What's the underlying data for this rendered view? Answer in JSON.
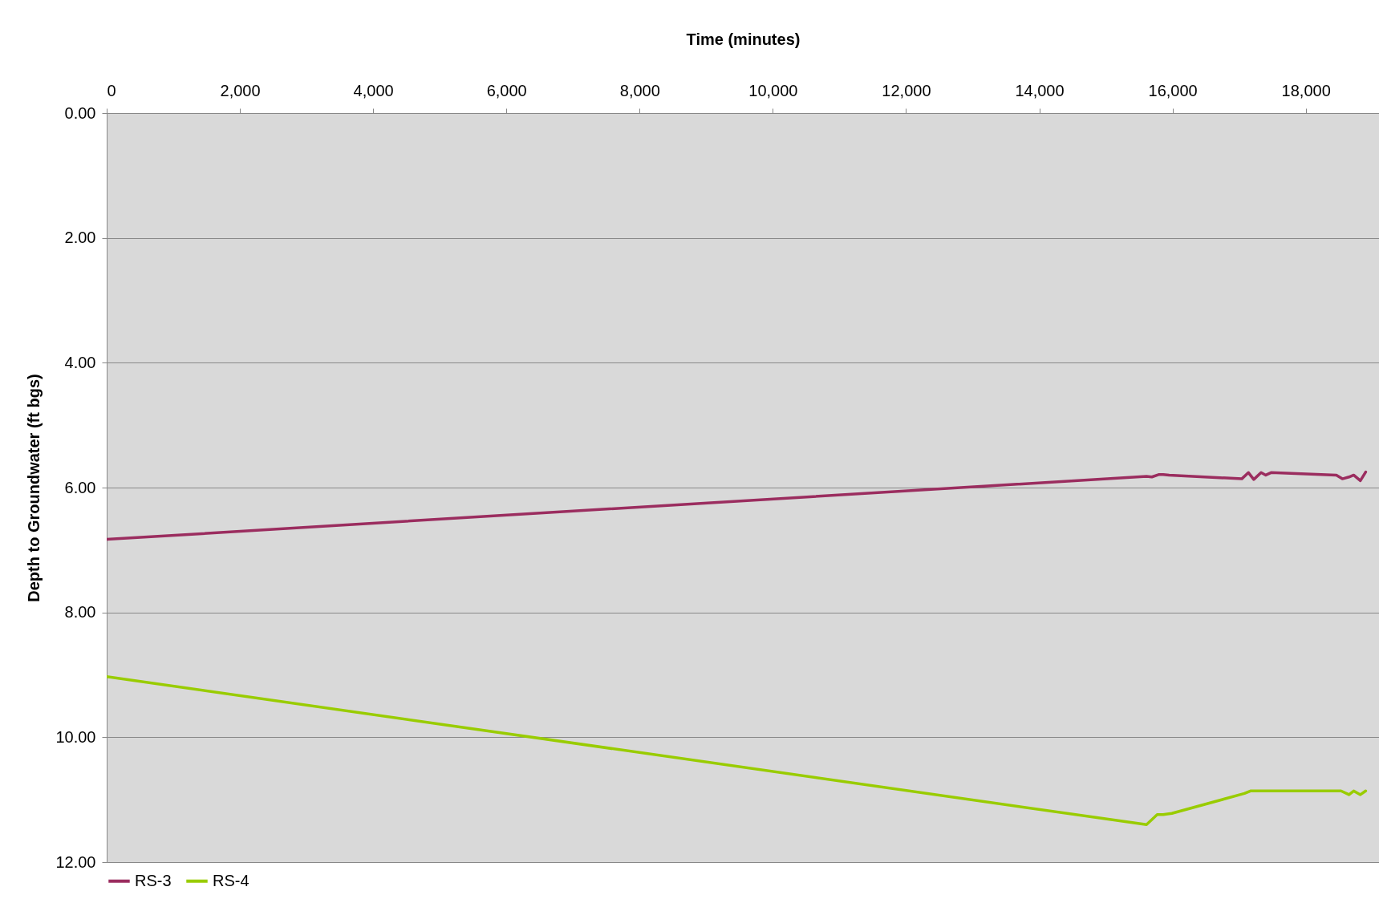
{
  "chart_data": {
    "type": "line",
    "xlabel": "Time (minutes)",
    "ylabel": "Depth to Groundwater (ft bgs)",
    "xlim": [
      0,
      19100
    ],
    "ylim": [
      12,
      0
    ],
    "xticks": [
      0,
      {
        "value": 2000,
        "label": "2,000"
      },
      {
        "value": 4000,
        "label": "4,000"
      },
      {
        "value": 6000,
        "label": "6,000"
      },
      {
        "value": 8000,
        "label": "8,000"
      },
      {
        "value": 10000,
        "label": "10,000"
      },
      {
        "value": 12000,
        "label": "12,000"
      },
      {
        "value": 14000,
        "label": "14,000"
      },
      {
        "value": 16000,
        "label": "16,000"
      },
      {
        "value": 18000,
        "label": "18,000"
      }
    ],
    "yticks": [
      {
        "value": 0,
        "label": "0.00"
      },
      {
        "value": 2,
        "label": "2.00"
      },
      {
        "value": 4,
        "label": "4.00"
      },
      {
        "value": 6,
        "label": "6.00"
      },
      {
        "value": 8,
        "label": "8.00"
      },
      {
        "value": 10,
        "label": "10.00"
      },
      {
        "value": 12,
        "label": "12.00"
      }
    ],
    "grid": "y",
    "legend": "bottom",
    "marker": "none",
    "series": [
      {
        "name": "RS-3",
        "color": "#9b2d5f",
        "x": [
          0,
          15610,
          15690,
          15800,
          15860,
          15950,
          17040,
          17140,
          17220,
          17330,
          17400,
          17480,
          18460,
          18550,
          18650,
          18720,
          18820,
          18900
        ],
        "values": [
          6.83,
          5.82,
          5.83,
          5.79,
          5.79,
          5.8,
          5.86,
          5.76,
          5.87,
          5.76,
          5.8,
          5.76,
          5.8,
          5.86,
          5.83,
          5.8,
          5.89,
          5.75
        ]
      },
      {
        "name": "RS-4",
        "color": "#99cc00",
        "x": [
          0,
          15610,
          15770,
          15860,
          15990,
          17080,
          17170,
          18530,
          18650,
          18720,
          18820,
          18900
        ],
        "values": [
          9.03,
          11.4,
          11.24,
          11.24,
          11.22,
          10.9,
          10.86,
          10.86,
          10.92,
          10.86,
          10.92,
          10.86
        ]
      }
    ]
  }
}
